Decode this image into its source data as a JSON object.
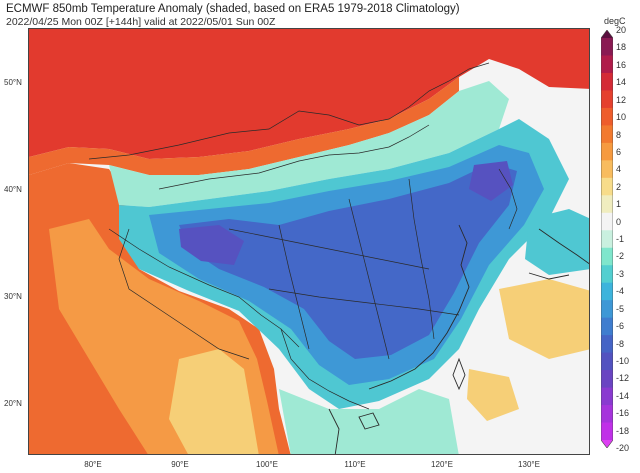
{
  "title": {
    "line1": "ECMWF 850mb Temperature Anomaly (shaded, based on ERA5 1979-2018 Climatology)",
    "line2": "2022/04/25 Mon 00Z [+144h] valid at 2022/05/01 Sun 00Z"
  },
  "axes": {
    "lat_labels": [
      "50°N",
      "40°N",
      "30°N",
      "20°N"
    ],
    "lon_labels": [
      "80°E",
      "90°E",
      "100°E",
      "110°E",
      "120°E",
      "130°E"
    ]
  },
  "colorbar": {
    "unit": "degC",
    "labels": [
      "20",
      "18",
      "16",
      "14",
      "12",
      "10",
      "8",
      "6",
      "4",
      "2",
      "1",
      "0",
      "-1",
      "-2",
      "-3",
      "-4",
      "-5",
      "-6",
      "-8",
      "-10",
      "-12",
      "-14",
      "-16",
      "-18",
      "-20"
    ],
    "colors": [
      "#5a0f3e",
      "#8a1a52",
      "#b01c4a",
      "#d42a36",
      "#e5402e",
      "#ee5d2c",
      "#f27a2f",
      "#f69a3f",
      "#f8bc5e",
      "#f7dc8a",
      "#f0edbf",
      "#f4f4f4",
      "#c9f0df",
      "#7fe6cc",
      "#52cfd0",
      "#3db4dc",
      "#3e98d6",
      "#3f7dcf",
      "#4564c6",
      "#5252c0",
      "#6a44c2",
      "#8a3ad0",
      "#a634dc",
      "#c030e8",
      "#dd40f2"
    ]
  },
  "map": {
    "colors": {
      "very_warm": "#e23a2e",
      "warm": "#ee6a30",
      "mild": "#f59a45",
      "slight_warm": "#f6cf77",
      "neutral": "#f4f4f4",
      "slight_cool": "#9fe9d4",
      "cool": "#4fc7d2",
      "cooler": "#3e98d6",
      "cold": "#4468c8",
      "coldest": "#5652c0",
      "border": "#2a2a2a"
    }
  }
}
